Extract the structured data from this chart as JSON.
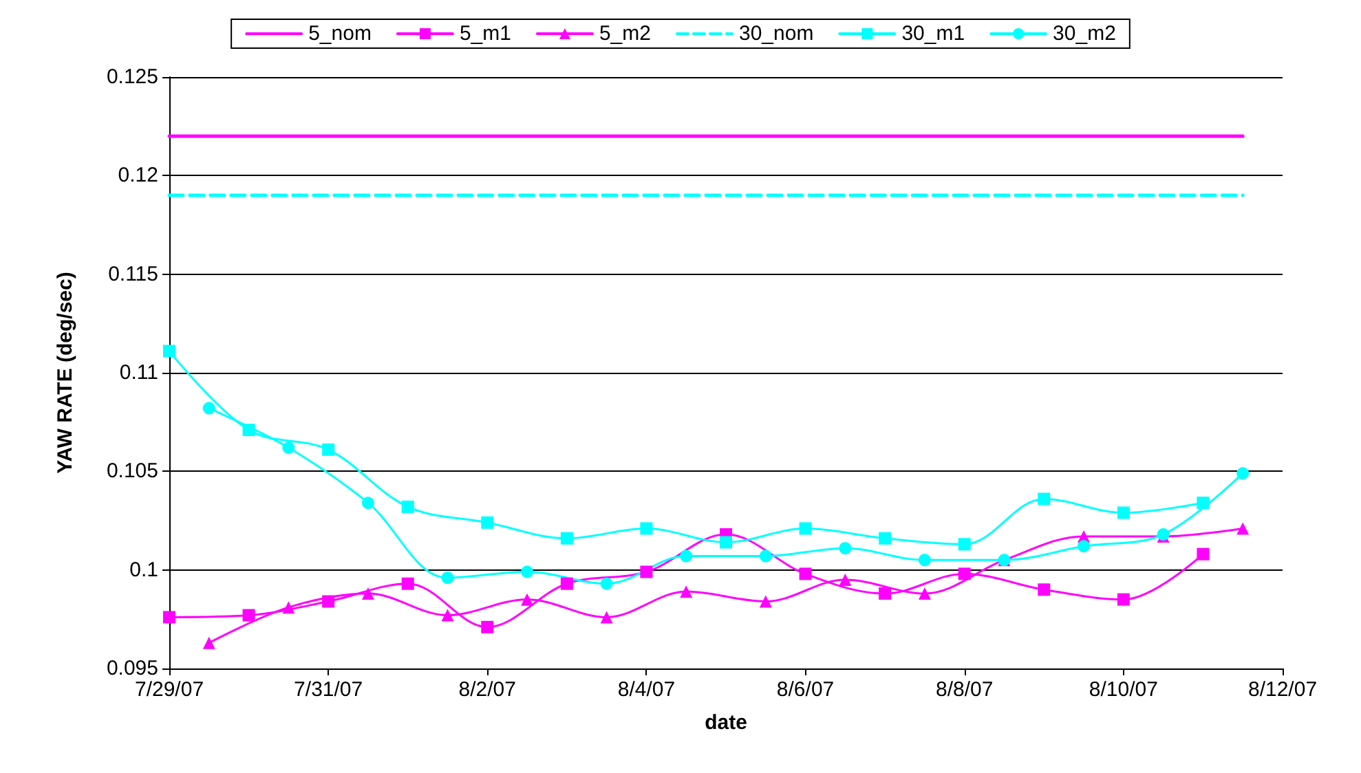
{
  "chart_data": {
    "type": "line",
    "xlabel": "date",
    "ylabel": "YAW RATE (deg/sec)",
    "xlim": [
      "--07-29",
      "--08-12"
    ],
    "xticks": [
      {
        "value": "--07-29",
        "label": "7/29/07"
      },
      {
        "value": "--07-31",
        "label": "7/31/07"
      },
      {
        "value": "--08-02",
        "label": "8/2/07"
      },
      {
        "value": "--08-04",
        "label": "8/4/07"
      },
      {
        "value": "--08-06",
        "label": "8/6/07"
      },
      {
        "value": "--08-08",
        "label": "8/8/07"
      },
      {
        "value": "--08-10",
        "label": "8/10/07"
      },
      {
        "value": "--08-12",
        "label": "8/12/07"
      }
    ],
    "ylim": [
      0.095,
      0.125
    ],
    "yticks": [
      0.095,
      0.1,
      0.105,
      0.11,
      0.115,
      0.12,
      0.125
    ],
    "grid": "y",
    "legend": "top",
    "series": [
      {
        "name": "5_nom",
        "color": "#ff00ff",
        "marker": "none",
        "line_style": "solid",
        "x": [
          "--07-29",
          "--08-11T12:00"
        ],
        "values": [
          0.122,
          0.122
        ]
      },
      {
        "name": "5_m1",
        "color": "#ff00ff",
        "marker": "square",
        "line_style": "solid",
        "x": [
          "--07-29",
          "--07-30",
          "--07-31",
          "--08-01",
          "--08-02",
          "--08-03",
          "--08-04",
          "--08-05",
          "--08-06",
          "--08-07",
          "--08-08",
          "--08-09",
          "--08-10",
          "--08-11"
        ],
        "values": [
          0.0976,
          0.0977,
          0.0984,
          0.0993,
          0.0971,
          0.0993,
          0.0999,
          0.1018,
          0.0998,
          0.0988,
          0.0998,
          0.099,
          0.0985,
          0.1008
        ]
      },
      {
        "name": "5_m2",
        "color": "#ff00ff",
        "marker": "triangle",
        "line_style": "solid",
        "x": [
          "--07-29T12:00",
          "--07-30T12:00",
          "--07-31T12:00",
          "--08-01T12:00",
          "--08-02T12:00",
          "--08-03T12:00",
          "--08-04T12:00",
          "--08-05T12:00",
          "--08-06T12:00",
          "--08-07T12:00",
          "--08-08T12:00",
          "--08-09T12:00",
          "--08-10T12:00",
          "--08-11T12:00"
        ],
        "values": [
          0.0963,
          0.0981,
          0.0988,
          0.0977,
          0.0985,
          0.0976,
          0.0989,
          0.0984,
          0.0995,
          0.0988,
          0.1005,
          0.1017,
          0.1017,
          0.1021
        ]
      },
      {
        "name": "30_nom",
        "color": "#00ffff",
        "marker": "none",
        "line_style": "dashed",
        "x": [
          "--07-29",
          "--08-11T12:00"
        ],
        "values": [
          0.119,
          0.119
        ]
      },
      {
        "name": "30_m1",
        "color": "#00ffff",
        "marker": "square",
        "line_style": "solid",
        "x": [
          "--07-29",
          "--07-30",
          "--07-31",
          "--08-01",
          "--08-02",
          "--08-03",
          "--08-04",
          "--08-05",
          "--08-06",
          "--08-07",
          "--08-08",
          "--08-09",
          "--08-10",
          "--08-11"
        ],
        "values": [
          0.1111,
          0.1071,
          0.1061,
          0.1032,
          0.1024,
          0.1016,
          0.1021,
          0.1014,
          0.1021,
          0.1016,
          0.1013,
          0.1036,
          0.1029,
          0.1034
        ]
      },
      {
        "name": "30_m2",
        "color": "#00ffff",
        "marker": "circle",
        "line_style": "solid",
        "x": [
          "--07-29T12:00",
          "--07-30T12:00",
          "--07-31T12:00",
          "--08-01T12:00",
          "--08-02T12:00",
          "--08-03T12:00",
          "--08-04T12:00",
          "--08-05T12:00",
          "--08-06T12:00",
          "--08-07T12:00",
          "--08-08T12:00",
          "--08-09T12:00",
          "--08-10T12:00",
          "--08-11T12:00"
        ],
        "values": [
          0.1082,
          0.1062,
          0.1034,
          0.0996,
          0.0999,
          0.0993,
          0.1007,
          0.1007,
          0.1011,
          0.1005,
          0.1005,
          0.1012,
          0.1018,
          0.1049
        ]
      }
    ]
  }
}
